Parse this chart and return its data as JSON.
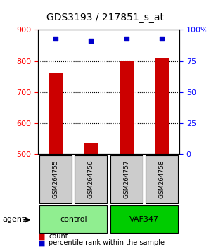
{
  "title": "GDS3193 / 217851_s_at",
  "samples": [
    "GSM264755",
    "GSM264756",
    "GSM264757",
    "GSM264758"
  ],
  "counts": [
    760,
    535,
    800,
    810
  ],
  "percentiles": [
    93,
    91,
    93,
    93
  ],
  "ylim_left": [
    500,
    900
  ],
  "ylim_right": [
    0,
    100
  ],
  "yticks_left": [
    500,
    600,
    700,
    800,
    900
  ],
  "yticks_right": [
    0,
    25,
    50,
    75,
    100
  ],
  "ytick_labels_right": [
    "0",
    "25",
    "50",
    "75",
    "100%"
  ],
  "bar_color": "#cc0000",
  "dot_color": "#0000cc",
  "grid_color": "#000000",
  "groups": [
    {
      "label": "control",
      "indices": [
        0,
        1
      ],
      "color": "#90ee90"
    },
    {
      "label": "VAF347",
      "indices": [
        2,
        3
      ],
      "color": "#00cc00"
    }
  ],
  "agent_label": "agent",
  "legend_count_color": "#cc0000",
  "legend_dot_color": "#0000cc",
  "bg_color": "#ffffff",
  "plot_bg_color": "#ffffff",
  "sample_box_color": "#cccccc",
  "title_fontsize": 10,
  "tick_fontsize": 8,
  "label_fontsize": 8
}
